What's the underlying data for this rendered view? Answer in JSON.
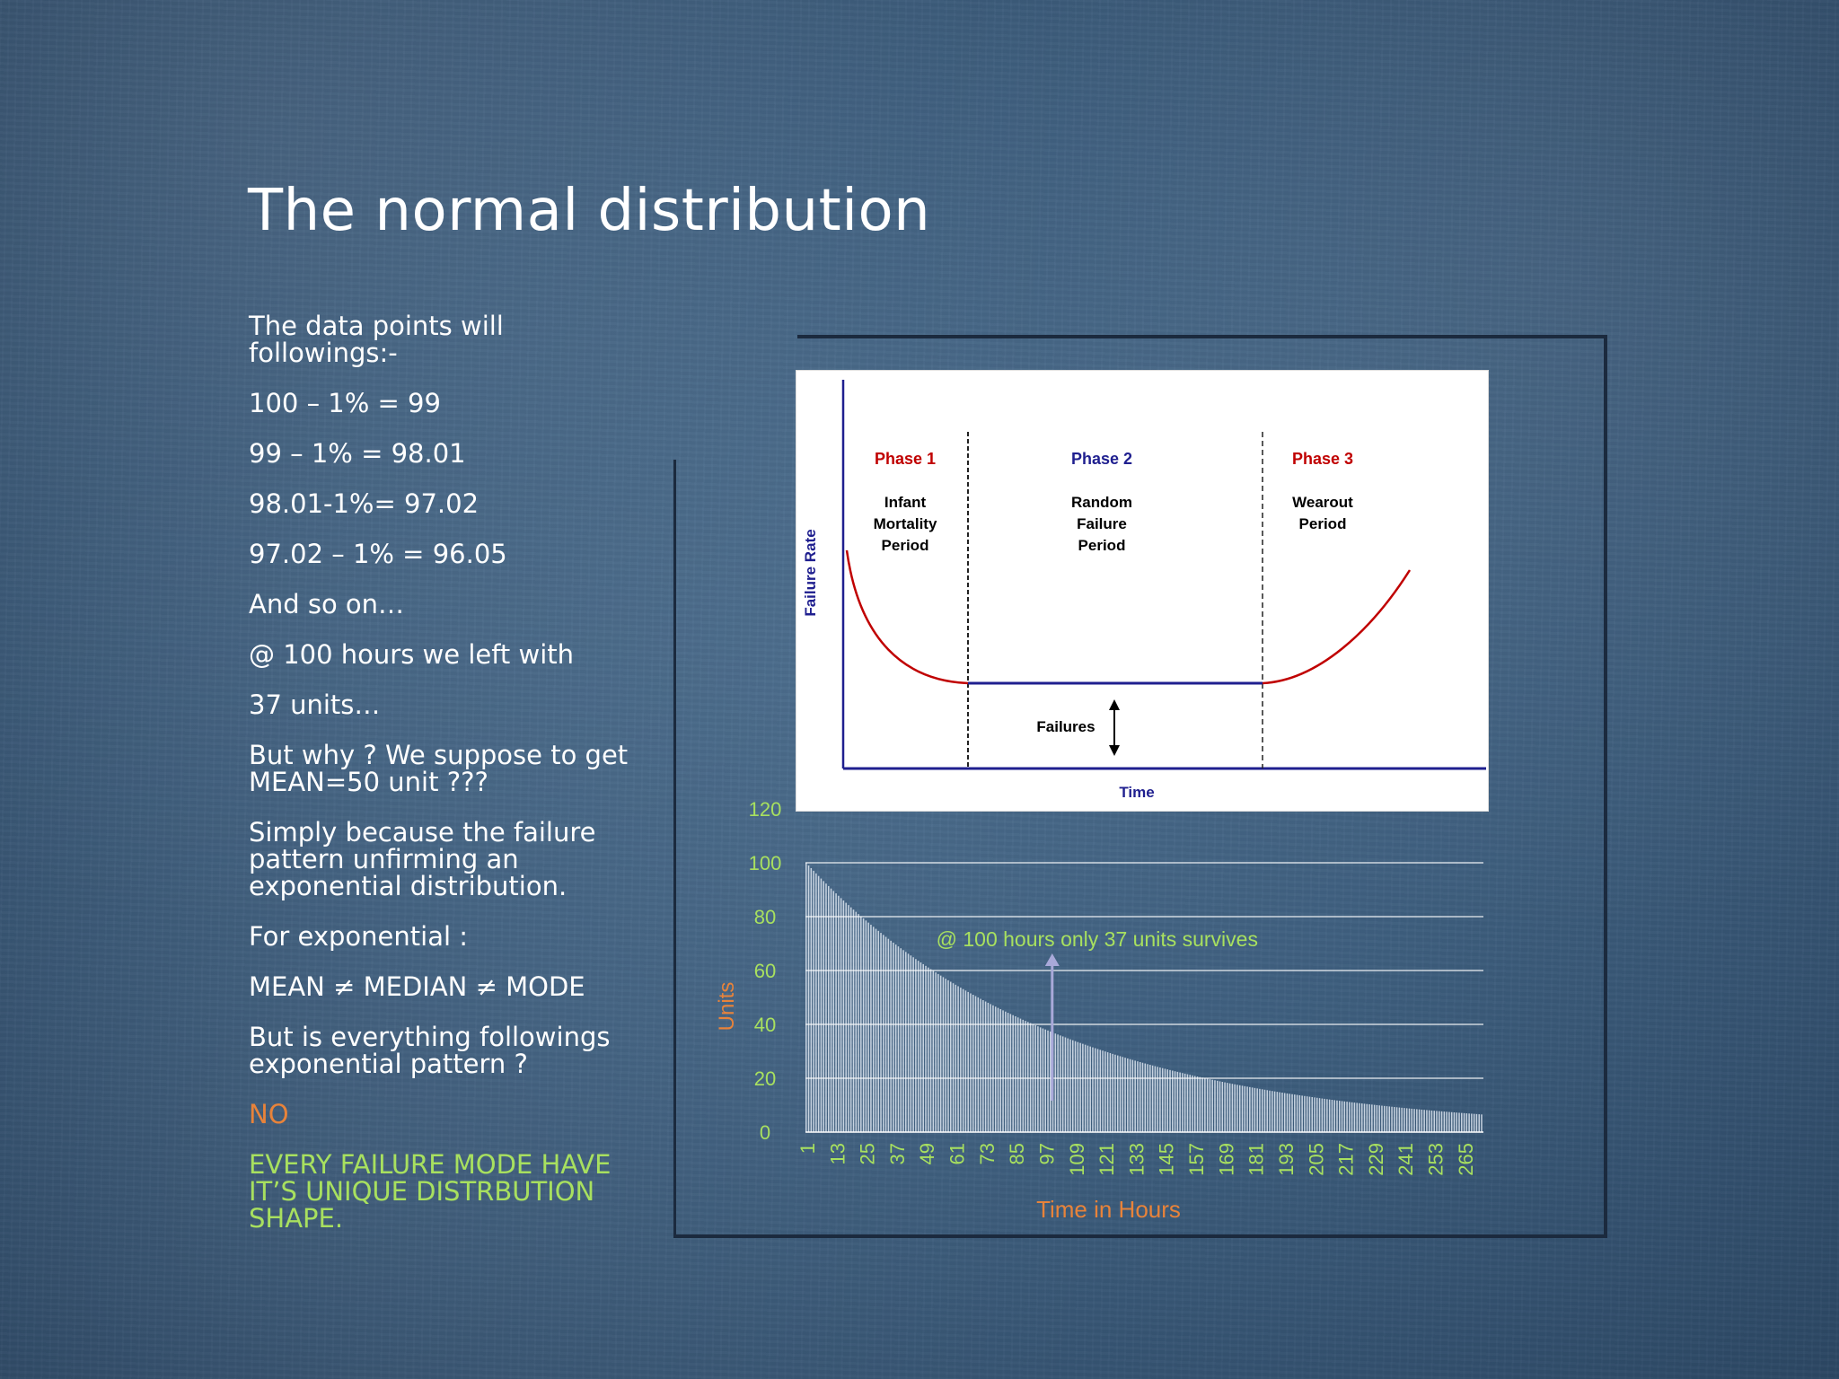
{
  "slide": {
    "title": "The normal distribution",
    "bullets": [
      {
        "text": "The data points will followings:-",
        "color": "white"
      },
      {
        "text": "100 – 1% = 99",
        "color": "white"
      },
      {
        "text": "99 – 1% = 98.01",
        "color": "white"
      },
      {
        "text": "98.01-1%= 97.02",
        "color": "white"
      },
      {
        "text": "97.02 – 1% = 96.05",
        "color": "white"
      },
      {
        "text": "And so on…",
        "color": "white"
      },
      {
        "text": "@ 100 hours we left with",
        "color": "white"
      },
      {
        "text": "37 units…",
        "color": "white"
      },
      {
        "text": "But why ? We suppose to get MEAN=50 unit ???",
        "color": "white"
      },
      {
        "text": "Simply because the failure pattern unfirming an exponential distribution.",
        "color": "white"
      },
      {
        "text": "For exponential :",
        "color": "white"
      },
      {
        "text": "MEAN ≠ MEDIAN ≠ MODE",
        "color": "white"
      },
      {
        "text": "But is everything followings exponential pattern ?",
        "color": "white"
      },
      {
        "text": "NO",
        "color": "orange"
      },
      {
        "text": "EVERY FAILURE MODE HAVE IT’S UNIQUE DISTRBUTION SHAPE.",
        "color": "green"
      }
    ],
    "colors": {
      "orange": "#e8833a",
      "green": "#a8e05f",
      "white": "#ffffff"
    }
  },
  "chart_data": [
    {
      "type": "line",
      "description_kind": "bathtub-curve",
      "xlabel": "Time",
      "ylabel": "Failure Rate",
      "phases": [
        {
          "name": "Phase 1",
          "label_lines": [
            "Infant",
            "Mortality",
            "Period"
          ],
          "color": "#c00000"
        },
        {
          "name": "Phase 2",
          "label_lines": [
            "Random",
            "Failure",
            "Period"
          ],
          "color": "#1f1f8f"
        },
        {
          "name": "Phase 3",
          "label_lines": [
            "Wearout",
            "Period"
          ],
          "color": "#c00000"
        }
      ],
      "annotation": "Failures",
      "curve_color": "#c00000",
      "baseline_color": "#1f1f8f"
    },
    {
      "type": "bar",
      "xlabel": "Time in Hours",
      "ylabel": "Units",
      "ylim": [
        0,
        120
      ],
      "yticks": [
        0,
        20,
        40,
        60,
        80,
        100,
        120
      ],
      "x_start": 1,
      "x_end": 272,
      "x_tick_labels": [
        "1",
        "13",
        "25",
        "37",
        "49",
        "61",
        "73",
        "85",
        "97",
        "109",
        "121",
        "133",
        "145",
        "157",
        "169",
        "181",
        "193",
        "205",
        "217",
        "229",
        "241",
        "253",
        "265"
      ],
      "initial_units": 100,
      "decay_rate_per_hour": 0.01,
      "annotation": {
        "text": "@ 100 hours only 37 units survives",
        "x": 100,
        "y": 37
      },
      "grid": true,
      "colors": {
        "bars": "#dfe8f2",
        "axis_labels": "#e8833a",
        "ticks_x": "#a8e05f",
        "ticks_y": "#a8e05f",
        "annotation": "#a8e05f",
        "arrow": "#a9a9d9"
      }
    }
  ]
}
